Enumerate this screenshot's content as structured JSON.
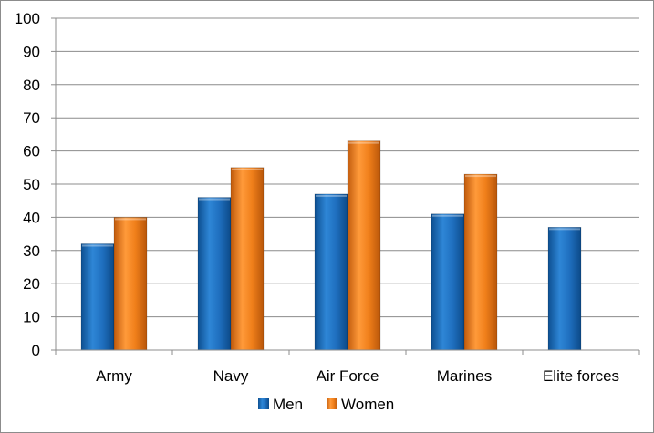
{
  "chart_data": {
    "type": "bar",
    "title": "",
    "xlabel": "",
    "ylabel": "",
    "categories": [
      "Army",
      "Navy",
      "Air Force",
      "Marines",
      "Elite forces"
    ],
    "series": [
      {
        "name": "Men",
        "color": "#1f6fbf",
        "values": [
          32,
          46,
          47,
          41,
          37
        ]
      },
      {
        "name": "Women",
        "color": "#f07f1a",
        "values": [
          40,
          55,
          63,
          53,
          null
        ]
      }
    ],
    "ylim": [
      0,
      100
    ],
    "yticks": [
      "0",
      "10",
      "20",
      "30",
      "40",
      "50",
      "60",
      "70",
      "80",
      "90",
      "100"
    ],
    "grid": true,
    "legend_position": "bottom"
  }
}
